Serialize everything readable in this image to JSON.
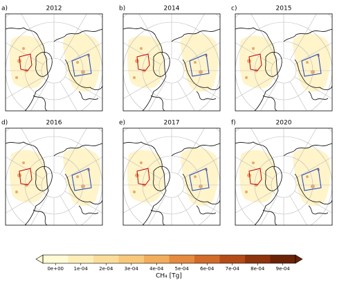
{
  "panels": [
    {
      "label": "a)",
      "title": "2012"
    },
    {
      "label": "b)",
      "title": "2014"
    },
    {
      "label": "c)",
      "title": "2015"
    },
    {
      "label": "d)",
      "title": "2016"
    },
    {
      "label": "e)",
      "title": "2017"
    },
    {
      "label": "f)",
      "title": "2020"
    }
  ],
  "colorbar": {
    "label": "CH₄ [Tg]",
    "lim": [
      -5e-05,
      0.00095
    ],
    "extend": "both",
    "colors": [
      "#fffbd5",
      "#fdeeb8",
      "#fbdd9a",
      "#f8c87a",
      "#f2ad5c",
      "#e68a3e",
      "#d26a29",
      "#b54c17",
      "#8f340d",
      "#6b2207"
    ],
    "ticks": [
      {
        "value": 0,
        "label": "0e+00"
      },
      {
        "value": 0.0001,
        "label": "1e-04"
      },
      {
        "value": 0.0002,
        "label": "2e-04"
      },
      {
        "value": 0.0003,
        "label": "3e-04"
      },
      {
        "value": 0.0004,
        "label": "4e-04"
      },
      {
        "value": 0.0005,
        "label": "5e-04"
      },
      {
        "value": 0.0006,
        "label": "6e-04"
      },
      {
        "value": 0.0007,
        "label": "7e-04"
      },
      {
        "value": 0.0008,
        "label": "8e-04"
      },
      {
        "value": 0.0009,
        "label": "9e-04"
      }
    ]
  }
}
